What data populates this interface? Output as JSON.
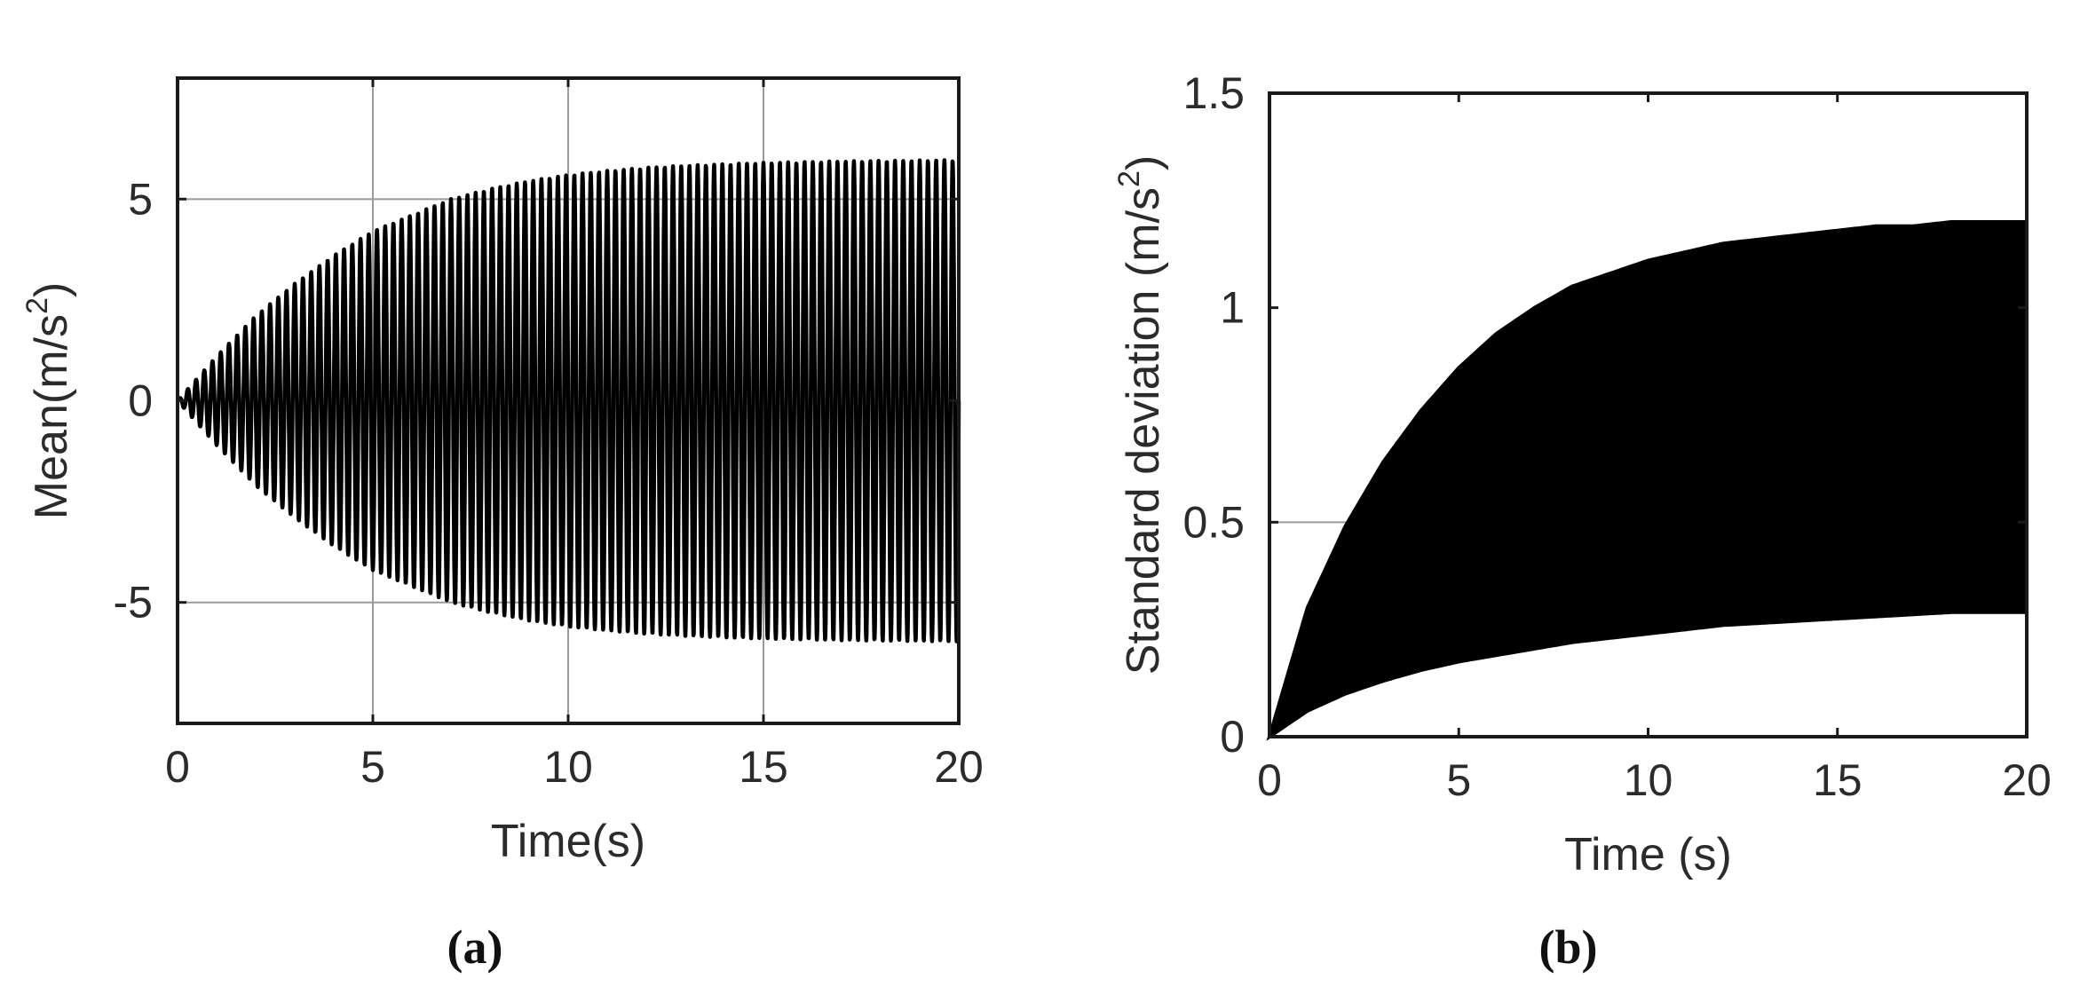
{
  "figure": {
    "panels": [
      {
        "label": "(a)"
      },
      {
        "label": "(b)"
      }
    ]
  },
  "chart_data": [
    {
      "panel": "(a)",
      "type": "line",
      "title": "",
      "xlabel": "Time(s)",
      "ylabel_main": "Mean(m/s",
      "ylabel_sup": "2",
      "ylabel_close": ")",
      "xlim": [
        0,
        20
      ],
      "ylim": [
        -8,
        8
      ],
      "xticks": [
        0,
        5,
        10,
        15,
        20
      ],
      "yticks": [
        -5,
        0,
        5
      ],
      "grid": false,
      "color": "#000000",
      "series": [
        {
          "description_values": "lightly damped oscillation building up from zero",
          "x": [
            0,
            1,
            2,
            3,
            4,
            5,
            6,
            7,
            8,
            9,
            10,
            11,
            12,
            13,
            14,
            15,
            16,
            17,
            18,
            19,
            20
          ],
          "envelope_upper": [
            0,
            1.1,
            2.1,
            2.9,
            3.6,
            4.2,
            4.6,
            5.0,
            5.25,
            5.45,
            5.6,
            5.7,
            5.78,
            5.83,
            5.87,
            5.9,
            5.92,
            5.94,
            5.95,
            5.96,
            5.97
          ],
          "envelope_lower": [
            0,
            -1.1,
            -2.1,
            -2.9,
            -3.6,
            -4.2,
            -4.6,
            -5.0,
            -5.25,
            -5.45,
            -5.6,
            -5.7,
            -5.78,
            -5.83,
            -5.87,
            -5.9,
            -5.92,
            -5.94,
            -5.95,
            -5.96,
            -5.97
          ],
          "cycles": 95
        }
      ]
    },
    {
      "panel": "(b)",
      "type": "area",
      "title": "",
      "xlabel": "Time (s)",
      "ylabel_main": "Standard deviation (m/s",
      "ylabel_sup": "2",
      "ylabel_close": ")",
      "xlim": [
        0,
        20
      ],
      "ylim": [
        0,
        1.5
      ],
      "xticks": [
        0,
        5,
        10,
        15,
        20
      ],
      "ytick_labels": [
        "0",
        "0.5",
        "1",
        "1.5"
      ],
      "yticks": [
        0,
        0.5,
        1,
        1.5
      ],
      "grid": false,
      "color": "#000000",
      "series": [
        {
          "x": [
            0,
            1,
            2,
            3,
            4,
            5,
            6,
            7,
            8,
            9,
            10,
            11,
            12,
            13,
            14,
            15,
            16,
            17,
            18,
            19,
            20
          ],
          "upper": [
            0.0,
            0.3,
            0.49,
            0.64,
            0.76,
            0.86,
            0.94,
            1.0,
            1.05,
            1.08,
            1.11,
            1.13,
            1.15,
            1.16,
            1.17,
            1.18,
            1.19,
            1.19,
            1.2,
            1.2,
            1.2
          ],
          "lower": [
            0.0,
            0.06,
            0.1,
            0.13,
            0.155,
            0.175,
            0.19,
            0.205,
            0.22,
            0.23,
            0.24,
            0.25,
            0.26,
            0.265,
            0.27,
            0.275,
            0.28,
            0.285,
            0.29,
            0.29,
            0.29
          ]
        }
      ]
    }
  ]
}
